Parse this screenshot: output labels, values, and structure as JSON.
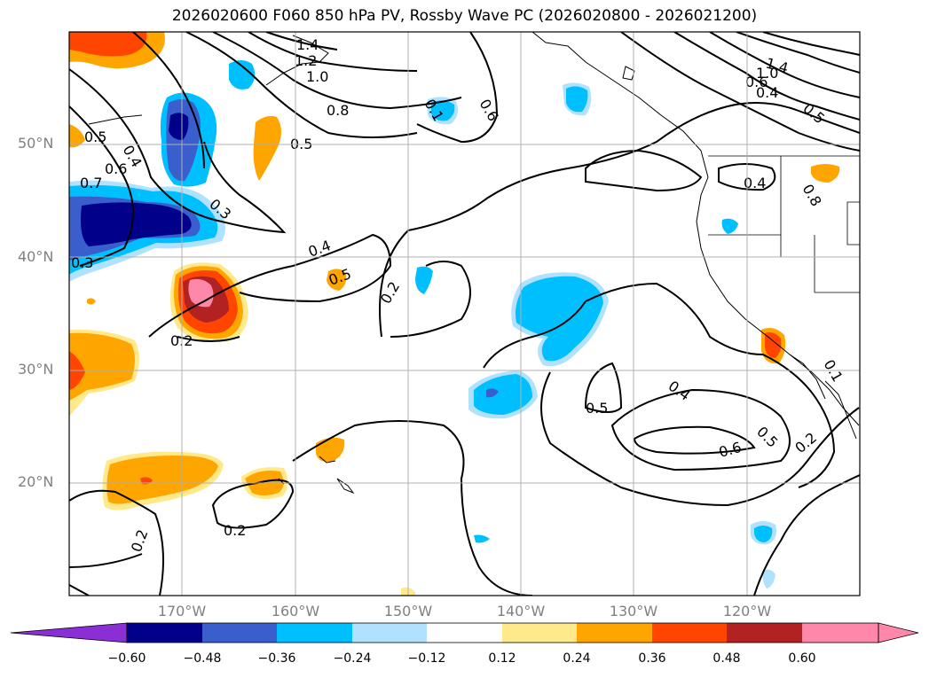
{
  "title": "2026020600 F060 850 hPa PV, Rossby Wave PC (2026020800 - 2026021200)",
  "lat_labels": [
    "50°N",
    "40°N",
    "30°N",
    "20°N"
  ],
  "lon_labels": [
    "170°W",
    "160°W",
    "150°W",
    "140°W",
    "130°W",
    "120°W"
  ],
  "contour_labels": [
    "1.4",
    "1.2",
    "1.0",
    "0.8",
    "0.5",
    "0.5",
    "0.4",
    "0.6",
    "0.7",
    "0.3",
    "0.3",
    "0.4",
    "0.5",
    "0.2",
    "0.2",
    "0.6",
    "0.1",
    "1.4",
    "1.0",
    "0.6",
    "0.4",
    "0.5",
    "0.4",
    "0.8",
    "0.5",
    "0.4",
    "0.5",
    "0.6",
    "0.2",
    "0.2",
    "0.2",
    "0.1"
  ],
  "colorbar": {
    "ticks": [
      "−0.60",
      "−0.48",
      "−0.36",
      "−0.24",
      "−0.12",
      "0.12",
      "0.24",
      "0.36",
      "0.48",
      "0.60"
    ],
    "colors": [
      "#8a2fd6",
      "#00008b",
      "#3a5fcd",
      "#00bfff",
      "#b0e2ff",
      "#ffffff",
      "#ffe98a",
      "#ffa500",
      "#ff4500",
      "#b22222",
      "#ff88aa",
      "#ff88aa"
    ]
  }
}
